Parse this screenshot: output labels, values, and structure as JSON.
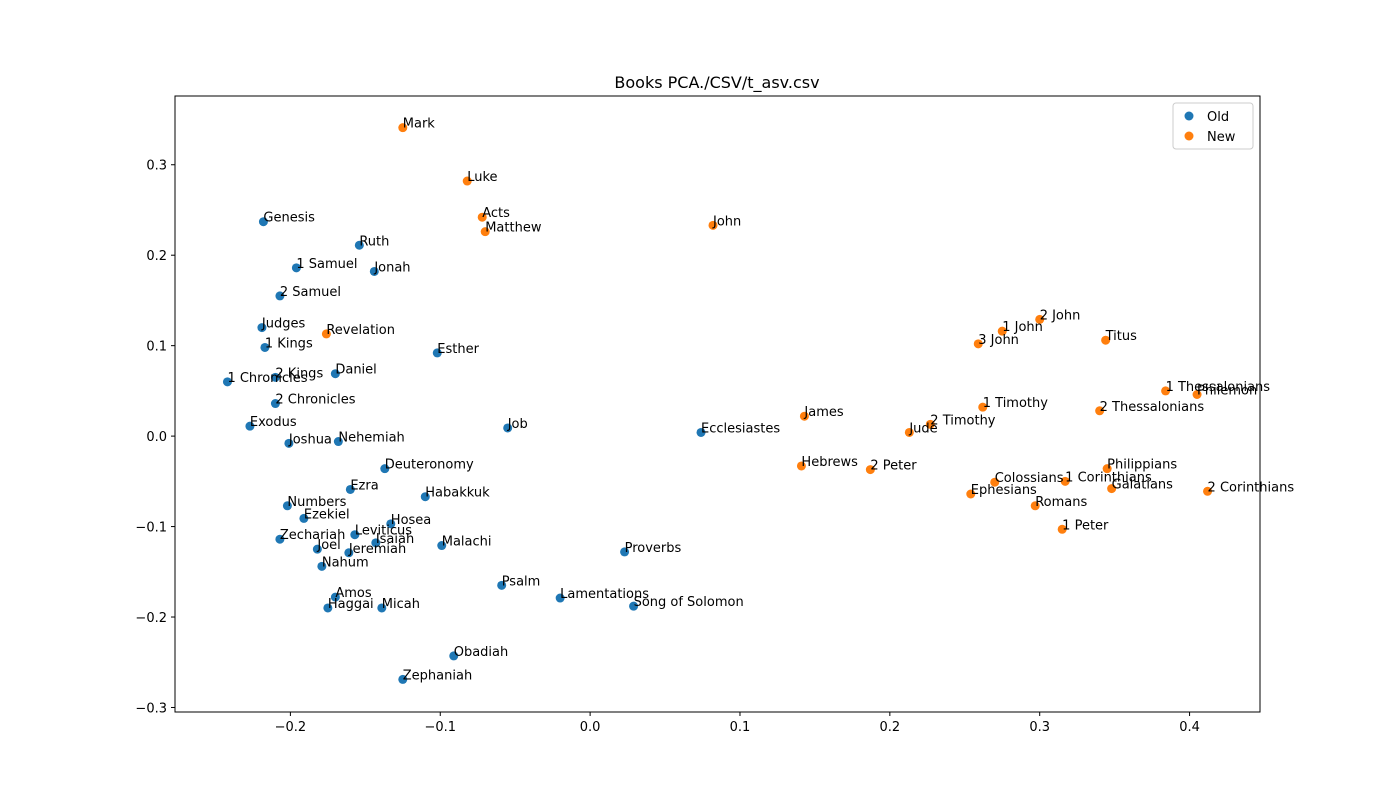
{
  "chart_data": {
    "type": "scatter",
    "title": "Books PCA./CSV/t_asv.csv",
    "xlabel": "",
    "ylabel": "",
    "xlim": [
      -0.277,
      0.447
    ],
    "ylim": [
      -0.305,
      0.376
    ],
    "xticks": [
      -0.2,
      -0.1,
      0.0,
      0.1,
      0.2,
      0.3,
      0.4
    ],
    "xtick_labels": [
      "−0.2",
      "−0.1",
      "0.0",
      "0.1",
      "0.2",
      "0.3",
      "0.4"
    ],
    "yticks": [
      -0.3,
      -0.2,
      -0.1,
      0.0,
      0.1,
      0.2,
      0.3
    ],
    "ytick_labels": [
      "−0.3",
      "−0.2",
      "−0.1",
      "0.0",
      "0.1",
      "0.2",
      "0.3"
    ],
    "grid": false,
    "legend": "top-right",
    "series": [
      {
        "name": "Old",
        "color": "#1f77b4",
        "points": [
          {
            "label": "Genesis",
            "x": -0.218,
            "y": 0.237
          },
          {
            "label": "Exodus",
            "x": -0.227,
            "y": 0.011
          },
          {
            "label": "Leviticus",
            "x": -0.157,
            "y": -0.109
          },
          {
            "label": "Numbers",
            "x": -0.202,
            "y": -0.077
          },
          {
            "label": "Deuteronomy",
            "x": -0.137,
            "y": -0.036
          },
          {
            "label": "Joshua",
            "x": -0.201,
            "y": -0.008
          },
          {
            "label": "Judges",
            "x": -0.219,
            "y": 0.12
          },
          {
            "label": "Ruth",
            "x": -0.154,
            "y": 0.211
          },
          {
            "label": "1 Samuel",
            "x": -0.196,
            "y": 0.186
          },
          {
            "label": "2 Samuel",
            "x": -0.207,
            "y": 0.155
          },
          {
            "label": "1 Kings",
            "x": -0.217,
            "y": 0.098
          },
          {
            "label": "2 Kings",
            "x": -0.21,
            "y": 0.065
          },
          {
            "label": "1 Chronicles",
            "x": -0.242,
            "y": 0.06
          },
          {
            "label": "2 Chronicles",
            "x": -0.21,
            "y": 0.036
          },
          {
            "label": "Ezra",
            "x": -0.16,
            "y": -0.059
          },
          {
            "label": "Nehemiah",
            "x": -0.168,
            "y": -0.006
          },
          {
            "label": "Esther",
            "x": -0.102,
            "y": 0.092
          },
          {
            "label": "Job",
            "x": -0.055,
            "y": 0.009
          },
          {
            "label": "Psalm",
            "x": -0.059,
            "y": -0.165
          },
          {
            "label": "Proverbs",
            "x": 0.023,
            "y": -0.128
          },
          {
            "label": "Ecclesiastes",
            "x": 0.074,
            "y": 0.004
          },
          {
            "label": "Song of Solomon",
            "x": 0.029,
            "y": -0.188
          },
          {
            "label": "Isaiah",
            "x": -0.143,
            "y": -0.118
          },
          {
            "label": "Jeremiah",
            "x": -0.161,
            "y": -0.129
          },
          {
            "label": "Lamentations",
            "x": -0.02,
            "y": -0.179
          },
          {
            "label": "Ezekiel",
            "x": -0.191,
            "y": -0.091
          },
          {
            "label": "Daniel",
            "x": -0.17,
            "y": 0.069
          },
          {
            "label": "Hosea",
            "x": -0.133,
            "y": -0.097
          },
          {
            "label": "Joel",
            "x": -0.182,
            "y": -0.125
          },
          {
            "label": "Amos",
            "x": -0.17,
            "y": -0.178
          },
          {
            "label": "Obadiah",
            "x": -0.091,
            "y": -0.243
          },
          {
            "label": "Jonah",
            "x": -0.144,
            "y": 0.182
          },
          {
            "label": "Micah",
            "x": -0.139,
            "y": -0.19
          },
          {
            "label": "Nahum",
            "x": -0.179,
            "y": -0.144
          },
          {
            "label": "Habakkuk",
            "x": -0.11,
            "y": -0.067
          },
          {
            "label": "Zephaniah",
            "x": -0.125,
            "y": -0.269
          },
          {
            "label": "Haggai",
            "x": -0.175,
            "y": -0.19
          },
          {
            "label": "Zechariah",
            "x": -0.207,
            "y": -0.114
          },
          {
            "label": "Malachi",
            "x": -0.099,
            "y": -0.121
          }
        ]
      },
      {
        "name": "New",
        "color": "#ff7f0e",
        "points": [
          {
            "label": "Matthew",
            "x": -0.07,
            "y": 0.226
          },
          {
            "label": "Mark",
            "x": -0.125,
            "y": 0.341
          },
          {
            "label": "Luke",
            "x": -0.082,
            "y": 0.282
          },
          {
            "label": "John",
            "x": 0.082,
            "y": 0.233
          },
          {
            "label": "Acts",
            "x": -0.072,
            "y": 0.242
          },
          {
            "label": "Romans",
            "x": 0.297,
            "y": -0.077
          },
          {
            "label": "1 Corinthians",
            "x": 0.317,
            "y": -0.05
          },
          {
            "label": "2 Corinthians",
            "x": 0.412,
            "y": -0.061
          },
          {
            "label": "Galatians",
            "x": 0.348,
            "y": -0.058
          },
          {
            "label": "Ephesians",
            "x": 0.254,
            "y": -0.064
          },
          {
            "label": "Philippians",
            "x": 0.345,
            "y": -0.036
          },
          {
            "label": "Colossians",
            "x": 0.27,
            "y": -0.051
          },
          {
            "label": "1 Thessalonians",
            "x": 0.384,
            "y": 0.05
          },
          {
            "label": "2 Thessalonians",
            "x": 0.34,
            "y": 0.028
          },
          {
            "label": "1 Timothy",
            "x": 0.262,
            "y": 0.032
          },
          {
            "label": "2 Timothy",
            "x": 0.227,
            "y": 0.013
          },
          {
            "label": "Titus",
            "x": 0.344,
            "y": 0.106
          },
          {
            "label": "Philemon",
            "x": 0.405,
            "y": 0.046
          },
          {
            "label": "Hebrews",
            "x": 0.141,
            "y": -0.033
          },
          {
            "label": "James",
            "x": 0.143,
            "y": 0.022
          },
          {
            "label": "1 Peter",
            "x": 0.315,
            "y": -0.103
          },
          {
            "label": "2 Peter",
            "x": 0.187,
            "y": -0.037
          },
          {
            "label": "1 John",
            "x": 0.275,
            "y": 0.116
          },
          {
            "label": "2 John",
            "x": 0.3,
            "y": 0.129
          },
          {
            "label": "3 John",
            "x": 0.259,
            "y": 0.102
          },
          {
            "label": "Jude",
            "x": 0.213,
            "y": 0.004
          },
          {
            "label": "Revelation",
            "x": -0.176,
            "y": 0.113
          }
        ]
      }
    ]
  }
}
